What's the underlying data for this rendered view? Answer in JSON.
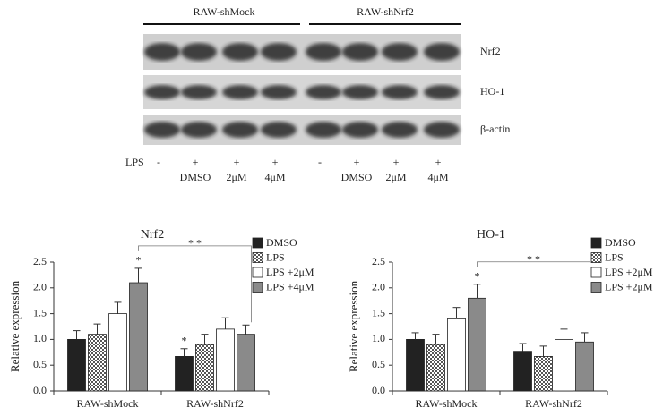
{
  "blot": {
    "groups": [
      "RAW-shMock",
      "RAW-shNrf2"
    ],
    "rows": [
      "Nrf2",
      "HO-1",
      "β-actin"
    ],
    "treatment_label": "LPS",
    "lps": [
      "-",
      "+",
      "+",
      "+",
      "-",
      "+",
      "+",
      "+"
    ],
    "conditions": [
      null,
      "DMSO",
      "2μM",
      "4μM",
      null,
      "DMSO",
      "2μM",
      "4μM"
    ]
  },
  "chart_data": [
    {
      "type": "bar",
      "title": "Nrf2",
      "y_label": "Relative expression",
      "categories": [
        "RAW-shMock",
        "RAW-shNrf2"
      ],
      "ylim": [
        0,
        2.5
      ],
      "yticks": [
        {
          "value": 0,
          "label": "0.0"
        },
        0.5,
        {
          "value": 1,
          "label": "1.0"
        },
        1.5,
        {
          "value": 2,
          "label": "2.0"
        },
        2.5
      ],
      "series": [
        {
          "name": "DMSO",
          "color": "#222222",
          "values": [
            1.0,
            0.67
          ],
          "errors": [
            0.17,
            0.15
          ],
          "significance": [
            null,
            "*"
          ]
        },
        {
          "name": "LPS",
          "color": "#d0d0d0",
          "hatch": true,
          "values": [
            1.1,
            0.9
          ],
          "errors": [
            0.2,
            0.2
          ],
          "significance": [
            null,
            null
          ]
        },
        {
          "name": "LPS +2μM",
          "color": "#ffffff",
          "values": [
            1.5,
            1.2
          ],
          "errors": [
            0.22,
            0.22
          ],
          "significance": [
            null,
            null
          ]
        },
        {
          "name": "LPS +4μM",
          "color": "#8a8a8a",
          "values": [
            2.1,
            1.1
          ],
          "errors": [
            0.28,
            0.18
          ],
          "significance": [
            "*",
            null
          ]
        }
      ],
      "comparison_label": "* *"
    },
    {
      "type": "bar",
      "title": "HO-1",
      "y_label": "Relative expression",
      "categories": [
        "RAW-shMock",
        "RAW-shNrf2"
      ],
      "ylim": [
        0,
        2.5
      ],
      "yticks": [
        {
          "value": 0,
          "label": "0.0"
        },
        0.5,
        {
          "value": 1,
          "label": "1.0"
        },
        1.5,
        {
          "value": 2,
          "label": "2.0"
        },
        2.5
      ],
      "series": [
        {
          "name": "DMSO",
          "color": "#222222",
          "values": [
            1.0,
            0.77
          ],
          "errors": [
            0.13,
            0.15
          ],
          "significance": [
            null,
            null
          ]
        },
        {
          "name": "LPS",
          "color": "#d0d0d0",
          "hatch": true,
          "values": [
            0.9,
            0.67
          ],
          "errors": [
            0.2,
            0.2
          ],
          "significance": [
            null,
            null
          ]
        },
        {
          "name": "LPS +2μM",
          "color": "#ffffff",
          "values": [
            1.4,
            1.0
          ],
          "errors": [
            0.22,
            0.2
          ],
          "significance": [
            null,
            null
          ]
        },
        {
          "name": "LPS +2μM",
          "color": "#8a8a8a",
          "values": [
            1.8,
            0.95
          ],
          "errors": [
            0.27,
            0.18
          ],
          "significance": [
            "*",
            null
          ]
        }
      ],
      "comparison_label": "* *"
    }
  ]
}
